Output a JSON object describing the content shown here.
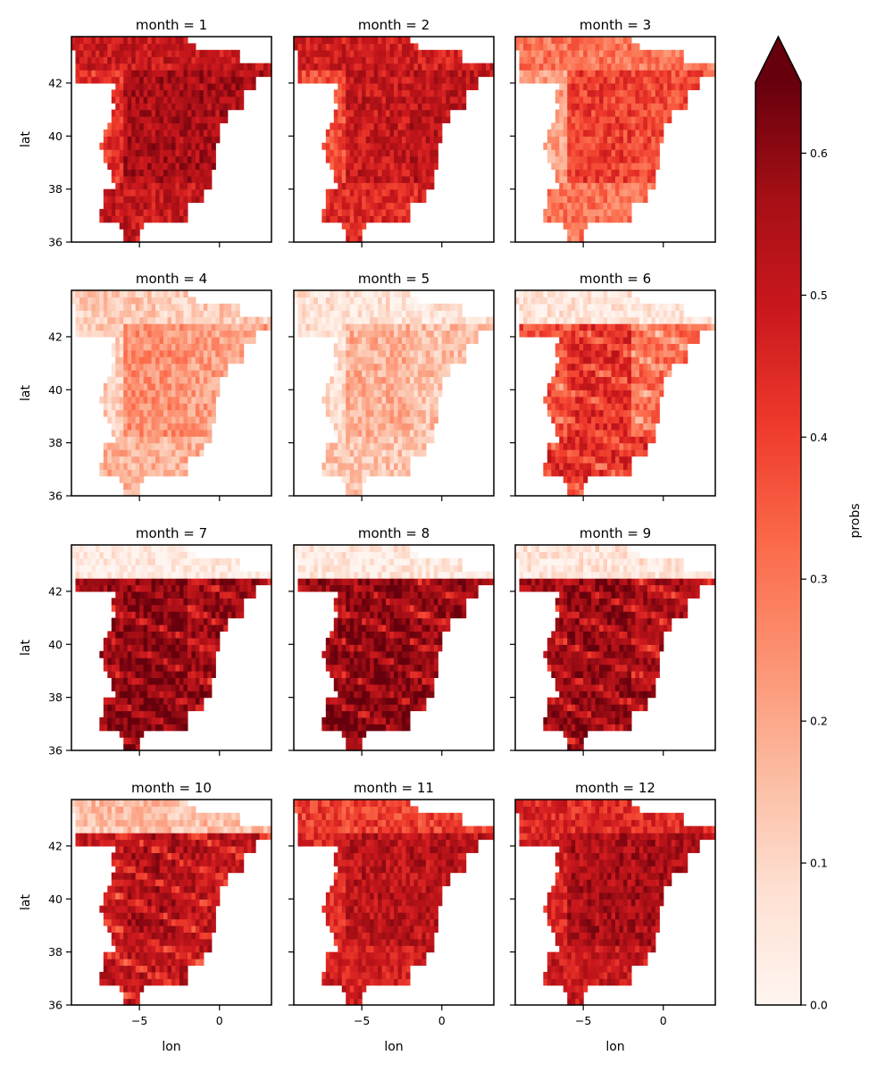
{
  "chart_data": {
    "type": "heatmap",
    "layout": "facet-grid",
    "facet_variable": "month",
    "panel_titles": [
      "month = 1",
      "month = 2",
      "month = 3",
      "month = 4",
      "month = 5",
      "month = 6",
      "month = 7",
      "month = 8",
      "month = 9",
      "month = 10",
      "month = 11",
      "month = 12"
    ],
    "xlabel": "lon",
    "ylabel": "lat",
    "xlim": [
      -9.25,
      3.25
    ],
    "ylim": [
      36,
      43.75
    ],
    "xticks": [
      -5,
      0
    ],
    "xtick_labels": [
      "−5",
      "0"
    ],
    "yticks": [
      36,
      38,
      40,
      42
    ],
    "ytick_labels": [
      "36",
      "38",
      "40",
      "42"
    ],
    "grid_resolution_deg": 0.25,
    "colorbar": {
      "label": "probs",
      "colormap": "Reds",
      "vmin": 0.0,
      "vmax": 0.65,
      "extend": "max",
      "ticks": [
        0.0,
        0.1,
        0.2,
        0.3,
        0.4,
        0.5,
        0.6
      ],
      "tick_labels": [
        "0.0",
        "0.1",
        "0.2",
        "0.3",
        "0.4",
        "0.5",
        "0.6"
      ]
    },
    "monthly_pattern": {
      "north_coast": [
        0.5,
        0.48,
        0.3,
        0.12,
        0.06,
        0.05,
        0.03,
        0.04,
        0.05,
        0.15,
        0.4,
        0.45
      ],
      "interior": [
        0.55,
        0.5,
        0.4,
        0.25,
        0.18,
        0.45,
        0.62,
        0.62,
        0.6,
        0.55,
        0.52,
        0.55
      ],
      "west": [
        0.42,
        0.38,
        0.22,
        0.12,
        0.08,
        0.38,
        0.58,
        0.58,
        0.56,
        0.5,
        0.45,
        0.46
      ],
      "south": [
        0.5,
        0.45,
        0.3,
        0.18,
        0.14,
        0.45,
        0.62,
        0.62,
        0.6,
        0.52,
        0.48,
        0.5
      ],
      "east": [
        0.55,
        0.52,
        0.38,
        0.22,
        0.15,
        0.32,
        0.58,
        0.58,
        0.56,
        0.52,
        0.52,
        0.55
      ]
    }
  }
}
